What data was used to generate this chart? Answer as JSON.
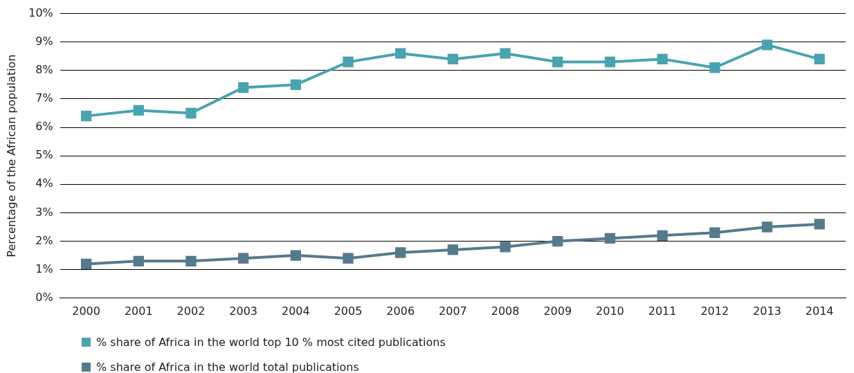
{
  "chart_data": {
    "type": "line",
    "ylabel": "Percentage of the African population",
    "categories": [
      "2000",
      "2001",
      "2002",
      "2003",
      "2004",
      "2005",
      "2006",
      "2007",
      "2008",
      "2009",
      "2010",
      "2011",
      "2012",
      "2013",
      "2014"
    ],
    "series": [
      {
        "name": "% share of Africa in the world top 10 % most cited publications",
        "color": "#4aa3b0",
        "values": [
          6.4,
          6.6,
          6.5,
          7.4,
          7.5,
          8.3,
          8.6,
          8.4,
          8.6,
          8.3,
          8.3,
          8.4,
          8.1,
          8.9,
          8.4
        ]
      },
      {
        "name": "% share of Africa in the world total publications",
        "color": "#557a8c",
        "values": [
          1.2,
          1.3,
          1.3,
          1.4,
          1.5,
          1.4,
          1.6,
          1.7,
          1.8,
          2.0,
          2.1,
          2.2,
          2.3,
          2.5,
          2.6
        ]
      }
    ],
    "ylim": [
      0,
      10
    ],
    "yticks": [
      {
        "value": 0,
        "label": "0%"
      },
      {
        "value": 1,
        "label": "1%"
      },
      {
        "value": 2,
        "label": "2%"
      },
      {
        "value": 3,
        "label": "3%"
      },
      {
        "value": 4,
        "label": "4%"
      },
      {
        "value": 5,
        "label": "5%"
      },
      {
        "value": 6,
        "label": "6%"
      },
      {
        "value": 7,
        "label": "7%"
      },
      {
        "value": 8,
        "label": "8%"
      },
      {
        "value": 9,
        "label": "9%"
      },
      {
        "value": 10,
        "label": "10%"
      }
    ],
    "grid": "y",
    "legend": "bottom left",
    "marker": "square",
    "line_style": "solid"
  }
}
